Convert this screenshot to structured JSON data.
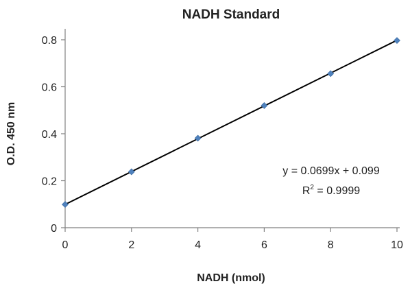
{
  "chart_data": {
    "type": "scatter",
    "title": "NADH Standard",
    "xlabel": "NADH (nmol)",
    "ylabel": "O.D.  450 nm",
    "xlim": [
      0,
      10
    ],
    "ylim": [
      0,
      0.8
    ],
    "xticks": [
      0,
      2,
      4,
      6,
      8,
      10
    ],
    "yticks": [
      0,
      0.2,
      0.4,
      0.6,
      0.8
    ],
    "xtick_labels": [
      "0",
      "2",
      "4",
      "6",
      "8",
      "10"
    ],
    "ytick_labels": [
      "0",
      "0.2",
      "0.4",
      "0.6",
      "0.8"
    ],
    "grid": false,
    "legend": "none",
    "marker": "diamond",
    "marker_color": "#4f81bd",
    "trendline_color": "#000000",
    "series": [
      {
        "x": [
          0,
          2,
          4,
          6,
          8,
          10
        ],
        "y": [
          0.099,
          0.238,
          0.381,
          0.52,
          0.656,
          0.797
        ]
      }
    ],
    "trendline": {
      "slope": 0.0699,
      "intercept": 0.099
    },
    "annotation": {
      "equation": "y = 0.0699x + 0.099",
      "r_squared_prefix": "R",
      "r_squared_sup": "2",
      "r_squared_suffix": " = 0.9999"
    }
  }
}
